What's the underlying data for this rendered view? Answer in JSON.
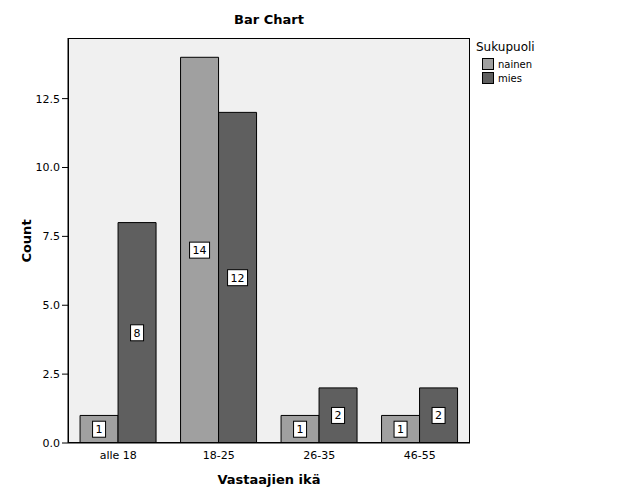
{
  "chart_data": {
    "type": "bar",
    "title": "Bar Chart",
    "x_label": "Vastaajien ikä",
    "y_label": "Count",
    "legend_title": "Sukupuoli",
    "categories": [
      "alle 18",
      "18-25",
      "26-35",
      "46-55"
    ],
    "series": [
      {
        "name": "nainen",
        "color": "#a0a0a0",
        "values": [
          1,
          14,
          1,
          1
        ]
      },
      {
        "name": "mies",
        "color": "#5f5f5f",
        "values": [
          8,
          12,
          2,
          2
        ]
      }
    ],
    "ylim": [
      0,
      14.7
    ],
    "yticks": [
      {
        "value": 0,
        "label": "0.0"
      },
      {
        "value": 2.5,
        "label": "2.5"
      },
      {
        "value": 5,
        "label": "5.0"
      },
      {
        "value": 7.5,
        "label": "7.5"
      },
      {
        "value": 10,
        "label": "10.0"
      },
      {
        "value": 12.5,
        "label": "12.5"
      }
    ],
    "grid": false,
    "legend": "right",
    "data_labels": true
  }
}
